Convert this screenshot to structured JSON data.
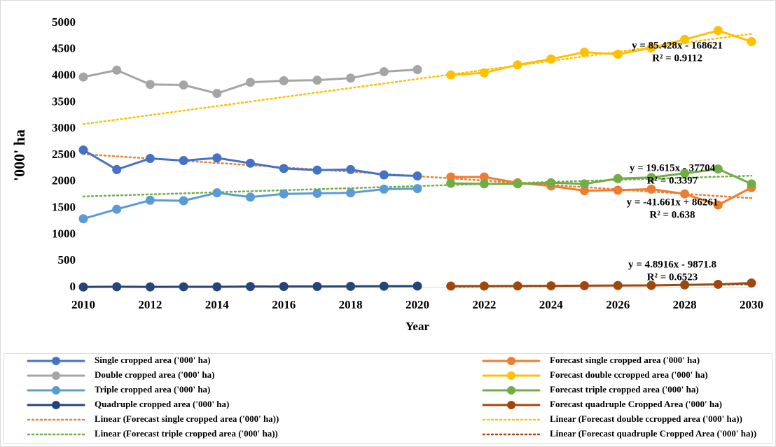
{
  "chart_data": {
    "type": "line",
    "ylabel": "'000' ha",
    "xlabel": "Year",
    "xlim": [
      2010,
      2030
    ],
    "xticks": [
      2010,
      2012,
      2014,
      2016,
      2018,
      2020,
      2022,
      2024,
      2026,
      2028,
      2030
    ],
    "ylim": [
      0,
      5000
    ],
    "yticks": [
      0,
      500,
      1000,
      1500,
      2000,
      2500,
      3000,
      3500,
      4000,
      4500,
      5000
    ],
    "grid": false,
    "series": [
      {
        "name": "Single cropped area ('000' ha)",
        "color": "#4472c4",
        "x": [
          2010,
          2011,
          2012,
          2013,
          2014,
          2015,
          2016,
          2017,
          2018,
          2019,
          2020
        ],
        "values": [
          2600,
          2230,
          2440,
          2400,
          2450,
          2350,
          2250,
          2220,
          2230,
          2130,
          2110
        ]
      },
      {
        "name": "Forecast single cropped area ('000' ha)",
        "color": "#ed7d31",
        "x": [
          2021,
          2022,
          2023,
          2024,
          2025,
          2026,
          2027,
          2028,
          2029,
          2030
        ],
        "values": [
          2090,
          2090,
          1980,
          1920,
          1830,
          1840,
          1860,
          1770,
          1560,
          1890
        ]
      },
      {
        "name": "Double cropped area ('000' ha)",
        "color": "#a5a5a5",
        "x": [
          2010,
          2011,
          2012,
          2013,
          2014,
          2015,
          2016,
          2017,
          2018,
          2019,
          2020
        ],
        "values": [
          3980,
          4110,
          3840,
          3830,
          3670,
          3880,
          3910,
          3920,
          3960,
          4080,
          4120
        ]
      },
      {
        "name": "Forecast double ccropped area ('000' ha)",
        "color": "#ffc000",
        "x": [
          2021,
          2022,
          2023,
          2024,
          2025,
          2026,
          2027,
          2028,
          2029,
          2030
        ],
        "values": [
          4020,
          4060,
          4210,
          4320,
          4450,
          4410,
          4530,
          4690,
          4860,
          4650
        ]
      },
      {
        "name": "Triple cropped area ('000' ha)",
        "color": "#5b9bd5",
        "x": [
          2010,
          2011,
          2012,
          2013,
          2014,
          2015,
          2016,
          2017,
          2018,
          2019,
          2020
        ],
        "values": [
          1300,
          1480,
          1650,
          1640,
          1790,
          1710,
          1770,
          1780,
          1790,
          1860,
          1870
        ]
      },
      {
        "name": "Forecast triple cropped area ('000' ha)",
        "color": "#70ad47",
        "x": [
          2021,
          2022,
          2023,
          2024,
          2025,
          2026,
          2027,
          2028,
          2029,
          2030
        ],
        "values": [
          1970,
          1960,
          1960,
          1980,
          1960,
          2060,
          2080,
          2160,
          2240,
          1960
        ]
      },
      {
        "name": "Quadruple cropped area ('000' ha)",
        "color": "#264478",
        "x": [
          2010,
          2011,
          2012,
          2013,
          2014,
          2015,
          2016,
          2017,
          2018,
          2019,
          2020
        ],
        "values": [
          10,
          15,
          12,
          14,
          13,
          18,
          20,
          20,
          22,
          25,
          27
        ]
      },
      {
        "name": "Forecast quadruple Cropped Area ('000' ha)",
        "color": "#9e480e",
        "x": [
          2021,
          2022,
          2023,
          2024,
          2025,
          2026,
          2027,
          2028,
          2029,
          2030
        ],
        "values": [
          27,
          28,
          30,
          32,
          35,
          38,
          40,
          50,
          60,
          85
        ]
      },
      {
        "name": "Linear (Forecast single cropped area ('000' ha))",
        "color": "#ed7d31",
        "dashed": true,
        "x": [
          2010,
          2030
        ],
        "values": [
          2522,
          1689
        ]
      },
      {
        "name": "Linear (Forecast double ccropped area ('000' ha))",
        "color": "#ffc000",
        "dashed": true,
        "x": [
          2010,
          2030
        ],
        "values": [
          3089,
          4798
        ]
      },
      {
        "name": "Linear (Forecast triple cropped area ('000' ha))",
        "color": "#70ad47",
        "dashed": true,
        "x": [
          2010,
          2030
        ],
        "values": [
          1722,
          2114
        ]
      },
      {
        "name": "Linear (Forecast quadruple Cropped Area ('000' ha))",
        "color": "#9e480e",
        "dashed": true,
        "x": [
          2021,
          2030
        ],
        "values": [
          14,
          58
        ]
      }
    ],
    "annotations": [
      "y = 85.428x - 168621",
      "R² = 0.9112",
      "y = 19.615x - 37704",
      "R² = 0.3397",
      "y = -41.661x + 86261",
      "R² = 0.638",
      "y = 4.8916x - 9871.8",
      "R² = 0.6523"
    ]
  }
}
